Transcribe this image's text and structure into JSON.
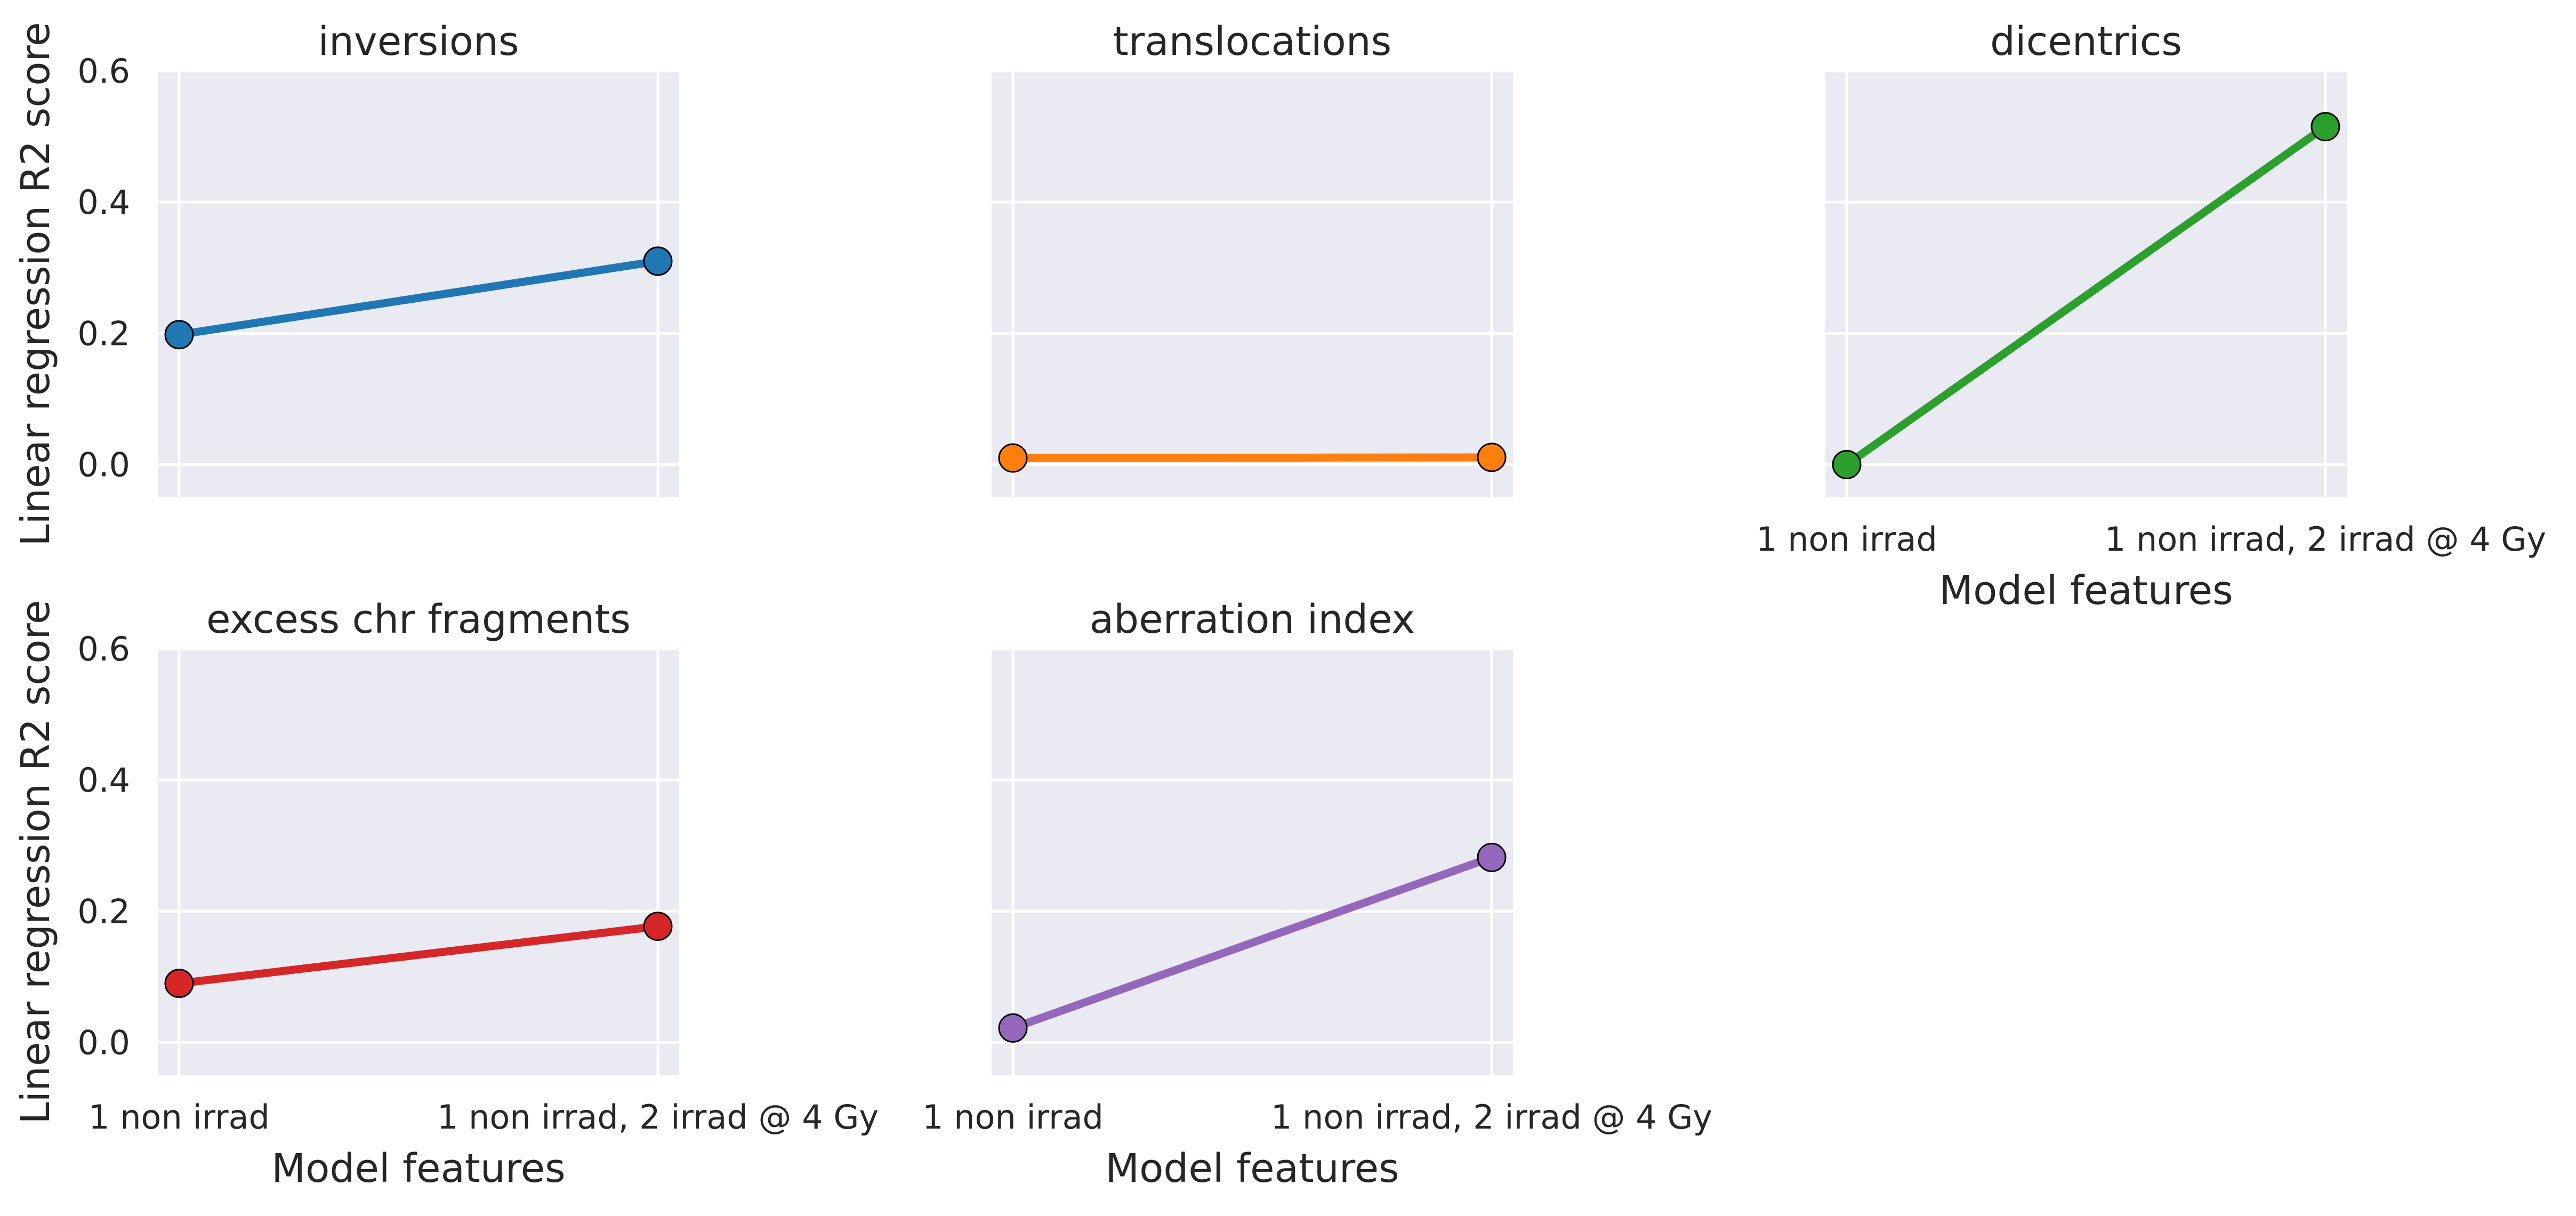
{
  "chart_data": [
    {
      "type": "line",
      "title": "inversions",
      "categories": [
        "1 non irrad",
        "1 non irrad, 2 irrad @ 4 Gy"
      ],
      "values": [
        0.198,
        0.31
      ],
      "color": "#1f77b4",
      "ylim": [
        -0.05,
        0.6
      ],
      "yticks": [
        "0.0",
        "0.2",
        "0.4",
        "0.6"
      ],
      "ylabel": "Linear regression R2 score",
      "xlabel": ""
    },
    {
      "type": "line",
      "title": "translocations",
      "categories": [
        "1 non irrad",
        "1 non irrad, 2 irrad @ 4 Gy"
      ],
      "values": [
        0.01,
        0.011
      ],
      "color": "#ff7f0e",
      "ylim": [
        -0.05,
        0.6
      ],
      "xlabel": ""
    },
    {
      "type": "line",
      "title": "dicentrics",
      "categories": [
        "1 non irrad",
        "1 non irrad, 2 irrad @ 4 Gy"
      ],
      "values": [
        0.0,
        0.515
      ],
      "color": "#2ca02c",
      "ylim": [
        -0.05,
        0.6
      ],
      "xlabel": "Model features"
    },
    {
      "type": "line",
      "title": "excess chr fragments",
      "categories": [
        "1 non irrad",
        "1 non irrad, 2 irrad @ 4 Gy"
      ],
      "values": [
        0.09,
        0.177
      ],
      "color": "#d62728",
      "ylim": [
        -0.05,
        0.6
      ],
      "yticks": [
        "0.0",
        "0.2",
        "0.4",
        "0.6"
      ],
      "ylabel": "Linear regression R2 score",
      "xlabel": "Model features"
    },
    {
      "type": "line",
      "title": "aberration index",
      "categories": [
        "1 non irrad",
        "1 non irrad, 2 irrad @ 4 Gy"
      ],
      "values": [
        0.022,
        0.282
      ],
      "color": "#9467bd",
      "ylim": [
        -0.05,
        0.6
      ],
      "xlabel": "Model features"
    }
  ]
}
